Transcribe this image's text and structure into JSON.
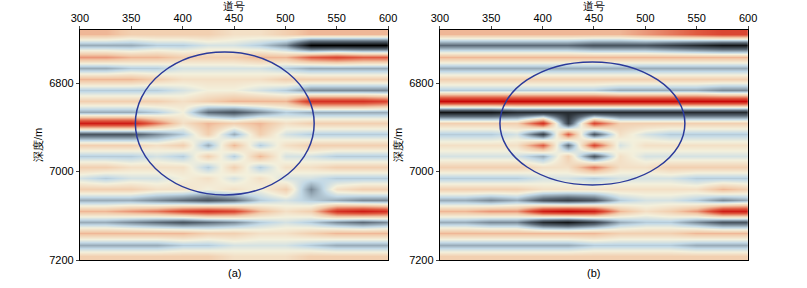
{
  "chart_data": [
    {
      "type": "heatmap",
      "title": "(a)",
      "xlabel": "道号",
      "ylabel": "深度/m",
      "xlim": [
        300,
        600
      ],
      "xticks": [
        300,
        350,
        400,
        450,
        500,
        550,
        600
      ],
      "ylim": [
        7200,
        6680
      ],
      "yticks": [
        6800,
        7000,
        7200
      ],
      "zlim": [
        -1,
        1
      ],
      "x": [
        300,
        325,
        350,
        375,
        400,
        425,
        450,
        475,
        500,
        525,
        550,
        575,
        600
      ],
      "y": [
        6690,
        6715,
        6740,
        6765,
        6790,
        6815,
        6840,
        6865,
        6890,
        6915,
        6940,
        6965,
        6990,
        7015,
        7040,
        7065,
        7090,
        7115,
        7140,
        7165,
        7190
      ],
      "values": [
        [
          0.3,
          0.3,
          0.2,
          0.2,
          0.2,
          0.2,
          0.1,
          0.1,
          0.2,
          0.3,
          0.3,
          0.3,
          0.3
        ],
        [
          -0.3,
          -0.3,
          -0.3,
          -0.2,
          -0.2,
          -0.1,
          -0.1,
          -0.2,
          -0.4,
          -1,
          -1,
          -1,
          -1
        ],
        [
          0.4,
          0.4,
          0.3,
          0.3,
          0.2,
          0.2,
          0.2,
          0.3,
          0.3,
          0.6,
          0.7,
          0.6,
          0.6
        ],
        [
          -0.3,
          -0.3,
          -0.2,
          -0.2,
          -0.1,
          -0.1,
          -0.1,
          -0.1,
          -0.2,
          -0.3,
          -0.3,
          -0.3,
          -0.3
        ],
        [
          0.3,
          0.3,
          0.3,
          0.2,
          0.1,
          0.1,
          0.1,
          0.1,
          0.2,
          0.2,
          0.2,
          0.2,
          0.2
        ],
        [
          -0.2,
          -0.2,
          -0.2,
          -0.2,
          -0.1,
          0,
          0,
          -0.1,
          -0.2,
          -0.4,
          -0.4,
          -0.4,
          -0.4
        ],
        [
          0.2,
          0.2,
          0.2,
          0.2,
          0.1,
          0.2,
          0.3,
          0.3,
          0.3,
          0.8,
          0.8,
          0.8,
          0.7
        ],
        [
          -0.3,
          -0.3,
          -0.3,
          -0.2,
          0,
          -0.5,
          -0.6,
          -0.4,
          -0.2,
          -0.3,
          -0.3,
          -0.3,
          -0.3
        ],
        [
          0.9,
          0.9,
          0.9,
          0.5,
          0.1,
          0.3,
          0.2,
          0.3,
          0.1,
          0.2,
          0.2,
          0.2,
          0.2
        ],
        [
          -0.6,
          -0.6,
          -0.6,
          -0.4,
          -0.2,
          0.2,
          -0.3,
          0.2,
          -0.1,
          -0.2,
          -0.2,
          -0.2,
          -0.2
        ],
        [
          0.2,
          0.2,
          0.2,
          0.1,
          0.2,
          -0.3,
          0.3,
          -0.2,
          0.1,
          0.2,
          0.2,
          0.2,
          0.2
        ],
        [
          -0.2,
          -0.2,
          -0.2,
          -0.1,
          -0.2,
          0.2,
          -0.2,
          0.3,
          -0.1,
          -0.1,
          -0.2,
          -0.2,
          -0.2
        ],
        [
          0.2,
          0.2,
          0.1,
          0.1,
          0.1,
          -0.2,
          0.2,
          -0.2,
          0.1,
          0.1,
          0.2,
          0.2,
          0.2
        ],
        [
          -0.1,
          -0.2,
          -0.1,
          -0.1,
          0,
          0.1,
          -0.1,
          0.1,
          -0.1,
          -0.1,
          -0.2,
          -0.2,
          -0.2
        ],
        [
          0.2,
          0.2,
          0.2,
          0.1,
          0.1,
          0,
          0.1,
          0,
          0.2,
          -0.4,
          0.1,
          0.2,
          0.2
        ],
        [
          -0.3,
          -0.3,
          -0.3,
          -0.4,
          -0.5,
          -0.6,
          -0.5,
          -0.2,
          -0.1,
          -0.2,
          -0.3,
          -0.4,
          -0.4
        ],
        [
          0.3,
          0.3,
          0.4,
          0.5,
          0.7,
          0.8,
          0.7,
          0.3,
          0.1,
          0.2,
          0.8,
          0.9,
          0.8
        ],
        [
          -0.3,
          -0.3,
          -0.4,
          -0.5,
          -0.6,
          -0.5,
          -0.4,
          -0.2,
          -0.1,
          -0.2,
          -0.4,
          -0.5,
          -0.4
        ],
        [
          0.3,
          0.3,
          0.3,
          0.3,
          0.3,
          0.2,
          0.2,
          0.1,
          0.1,
          0.2,
          0.3,
          0.3,
          0.3
        ],
        [
          -0.3,
          -0.3,
          -0.3,
          -0.3,
          -0.2,
          -0.2,
          -0.1,
          -0.1,
          -0.1,
          -0.2,
          -0.3,
          -0.3,
          -0.3
        ],
        [
          0.2,
          0.2,
          0.2,
          0.2,
          0.2,
          0.2,
          0.1,
          0.1,
          0.1,
          0.2,
          0.2,
          0.2,
          0.2
        ]
      ]
    },
    {
      "type": "heatmap",
      "title": "(b)",
      "xlabel": "道号",
      "ylabel": "深度/m",
      "xlim": [
        300,
        600
      ],
      "xticks": [
        300,
        350,
        400,
        450,
        500,
        550,
        600
      ],
      "ylim": [
        7200,
        6680
      ],
      "yticks": [
        6800,
        7000,
        7200
      ],
      "zlim": [
        -1,
        1
      ],
      "x": [
        300,
        325,
        350,
        375,
        400,
        425,
        450,
        475,
        500,
        525,
        550,
        575,
        600
      ],
      "y": [
        6690,
        6715,
        6740,
        6765,
        6790,
        6815,
        6840,
        6865,
        6890,
        6915,
        6940,
        6965,
        6990,
        7015,
        7040,
        7065,
        7090,
        7115,
        7140,
        7165,
        7190
      ],
      "values": [
        [
          0.3,
          0.3,
          0.3,
          0.3,
          0.3,
          0.3,
          0.3,
          0.3,
          0.4,
          0.5,
          0.6,
          0.7,
          0.7
        ],
        [
          -0.5,
          -0.5,
          -0.5,
          -0.5,
          -0.5,
          -0.5,
          -0.6,
          -0.6,
          -0.6,
          -0.7,
          -0.8,
          -0.9,
          -0.9
        ],
        [
          0.3,
          0.3,
          0.3,
          0.3,
          0.3,
          0.3,
          0.3,
          0.3,
          0.3,
          0.3,
          0.3,
          0.3,
          0.3
        ],
        [
          -0.3,
          -0.3,
          -0.3,
          -0.3,
          -0.3,
          -0.3,
          -0.3,
          -0.3,
          -0.3,
          -0.3,
          -0.3,
          -0.3,
          -0.3
        ],
        [
          0.2,
          0.2,
          0.2,
          0.2,
          0.2,
          0.2,
          0.2,
          0.2,
          0.2,
          0.2,
          0.2,
          0.2,
          0.2
        ],
        [
          -0.2,
          -0.2,
          -0.2,
          -0.2,
          -0.2,
          -0.2,
          -0.2,
          -0.3,
          -0.3,
          -0.3,
          -0.3,
          -0.4,
          -0.4
        ],
        [
          1,
          1,
          1,
          1,
          1,
          1,
          1,
          1,
          1,
          1,
          1,
          1,
          1
        ],
        [
          -0.9,
          -0.9,
          -0.9,
          -0.8,
          -0.8,
          -0.8,
          -0.8,
          -0.8,
          -0.8,
          -0.8,
          -0.8,
          -0.8,
          -0.8
        ],
        [
          0.2,
          0.2,
          0.2,
          0.2,
          0.8,
          -0.7,
          0.7,
          0.2,
          0.2,
          0.2,
          0.2,
          0.2,
          0.2
        ],
        [
          -0.2,
          -0.2,
          -0.2,
          -0.1,
          -0.7,
          0.6,
          -0.6,
          0.1,
          -0.1,
          -0.2,
          -0.2,
          -0.2,
          -0.2
        ],
        [
          0.1,
          0.1,
          0.1,
          0.1,
          0.6,
          -0.5,
          0.7,
          -0.1,
          0.1,
          0.1,
          0.1,
          0.1,
          0.1
        ],
        [
          -0.1,
          -0.1,
          -0.1,
          -0.1,
          -0.3,
          0.2,
          -0.6,
          0.1,
          -0.1,
          -0.1,
          -0.1,
          -0.1,
          -0.1
        ],
        [
          0.2,
          0.2,
          0.2,
          0.2,
          0.1,
          0.1,
          0.5,
          0.1,
          0.1,
          0.2,
          0.2,
          0.2,
          0.2
        ],
        [
          -0.2,
          -0.2,
          -0.2,
          -0.2,
          -0.1,
          -0.1,
          -0.2,
          -0.1,
          -0.1,
          -0.1,
          -0.2,
          -0.2,
          -0.2
        ],
        [
          0.2,
          0.2,
          0.2,
          0.2,
          0.1,
          0.1,
          0.1,
          0.1,
          0.1,
          0.1,
          0.1,
          0.3,
          0.2
        ],
        [
          -0.3,
          -0.3,
          -0.4,
          -0.3,
          -0.6,
          -0.7,
          -0.6,
          -0.2,
          -0.1,
          -0.1,
          -0.2,
          -0.4,
          -0.3
        ],
        [
          0.3,
          0.3,
          0.4,
          0.4,
          0.9,
          1,
          0.9,
          0.3,
          0.1,
          0.2,
          0.4,
          0.9,
          0.9
        ],
        [
          -0.3,
          -0.3,
          -0.4,
          -0.4,
          -0.8,
          -0.9,
          -0.7,
          -0.3,
          -0.2,
          -0.2,
          -0.4,
          -0.6,
          -0.6
        ],
        [
          0.3,
          0.3,
          0.3,
          0.3,
          0.3,
          0.3,
          0.3,
          0.2,
          0.2,
          0.2,
          0.3,
          0.3,
          0.3
        ],
        [
          -0.3,
          -0.3,
          -0.3,
          -0.3,
          -0.3,
          -0.3,
          -0.2,
          -0.2,
          -0.2,
          -0.2,
          -0.3,
          -0.3,
          -0.3
        ],
        [
          0.2,
          0.2,
          0.2,
          0.2,
          0.2,
          0.2,
          0.2,
          0.2,
          0.2,
          0.2,
          0.2,
          0.2,
          0.2
        ]
      ]
    }
  ]
}
